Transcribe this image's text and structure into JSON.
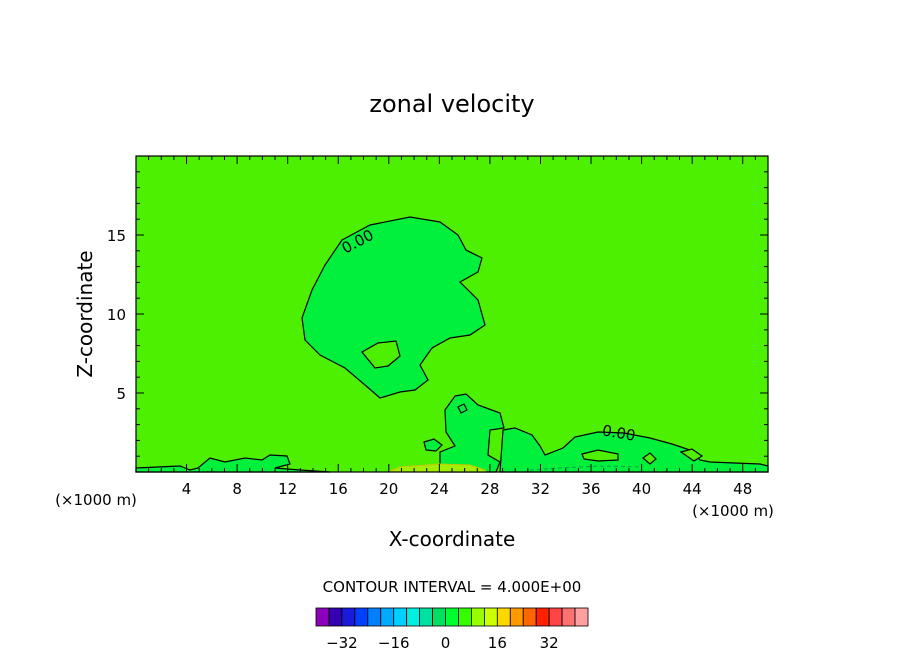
{
  "chart_data": {
    "type": "contour",
    "title": "zonal velocity",
    "xlabel": "X-coordinate",
    "ylabel": "Z-coordinate",
    "x_units_left": "(×1000 m)",
    "x_units_right": "(×1000 m)",
    "xlim": [
      0,
      50
    ],
    "ylim": [
      0,
      20
    ],
    "x_ticks": [
      4,
      8,
      12,
      16,
      20,
      24,
      28,
      32,
      36,
      40,
      44,
      48
    ],
    "y_ticks": [
      5,
      10,
      15
    ],
    "contour_labels": [
      {
        "text": "0.00",
        "x": 18.0,
        "z": 14.5
      },
      {
        "text": "0.00",
        "x": 37.8,
        "z": 2.5
      }
    ],
    "contour_interval_text": "CONTOUR INTERVAL = 4.000E+00",
    "colorbar": {
      "labels": [
        "-32",
        "-16",
        "0",
        "16",
        "32"
      ],
      "label_values": [
        -32,
        -16,
        0,
        16,
        32
      ],
      "colors": [
        "#8b00b8",
        "#3400b0",
        "#1a1ad9",
        "#0040ff",
        "#0080ff",
        "#00aaff",
        "#00d0ff",
        "#00f0e0",
        "#00e0a0",
        "#00e060",
        "#00ff30",
        "#33ff00",
        "#99ff00",
        "#ccff00",
        "#ffd700",
        "#ff9900",
        "#ff6600",
        "#ff2200",
        "#ff4444",
        "#ff7070",
        "#ffa0a0"
      ]
    },
    "background_color": "#4cf000",
    "zero_region_color": "#00f03c",
    "grid": false
  }
}
